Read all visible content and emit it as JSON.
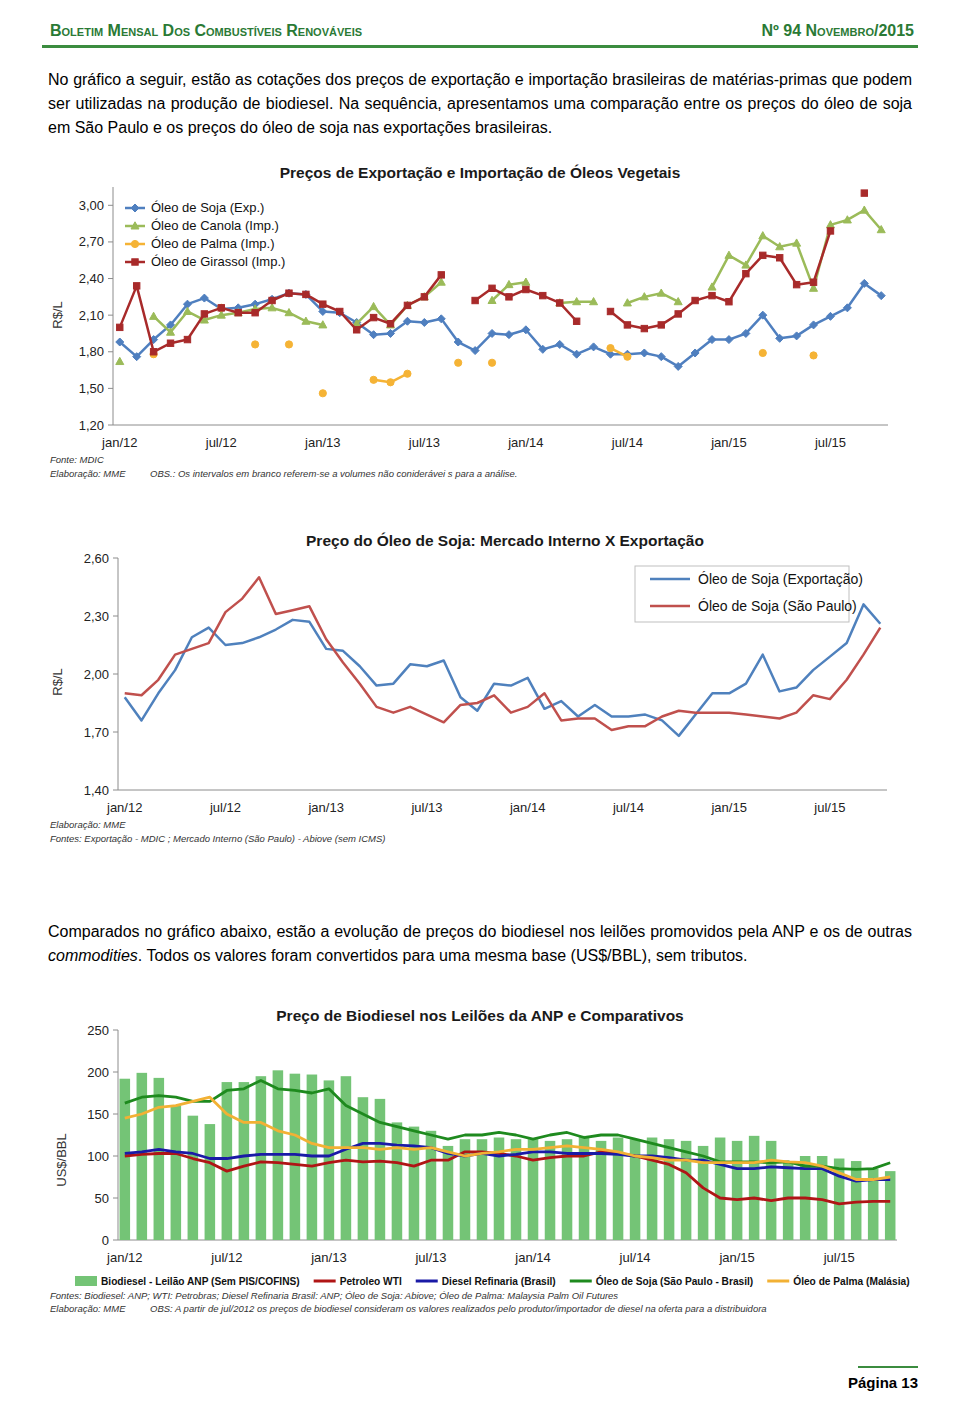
{
  "header": {
    "title": "Boletim Mensal Dos Combustíveis Renováveis",
    "issue": "Nº 94 Novembro/2015"
  },
  "paragraphs": [
    [
      {
        "text": "No gráfico a seguir, estão as cotações dos preços de exportação e importação brasileiras de matérias-primas que podem ser utilizadas na produção de biodiesel. Na sequência, apresentamos uma comparação entre os preços do óleo de soja em São Paulo e os preços do óleo de soja nas exportações brasileiras."
      }
    ],
    [
      {
        "text": "Comparados no gráfico abaixo, estão a evolução de preços do biodiesel nos leilões promovidos pela ANP e os de outras "
      },
      {
        "text": "commodities",
        "italic": true
      },
      {
        "text": ". Todos os valores foram convertidos para uma mesma base (US$/BBL), sem tributos."
      }
    ]
  ],
  "chart_data": [
    {
      "type": "line",
      "title": "Preços de Exportação e Importação de Óleos Vegetais",
      "y_label": "R$/L",
      "categories": [
        "jan/12",
        null,
        null,
        null,
        null,
        null,
        "jul/12",
        null,
        null,
        null,
        null,
        null,
        "jan/13",
        null,
        null,
        null,
        null,
        null,
        "jul/13",
        null,
        null,
        null,
        null,
        null,
        "jan/14",
        null,
        null,
        null,
        null,
        null,
        "jul/14",
        null,
        null,
        null,
        null,
        null,
        "jan/15",
        null,
        null,
        null,
        null,
        null,
        "jul/15",
        null,
        null,
        null
      ],
      "ylim": [
        1.2,
        3.15
      ],
      "yticks": [
        {
          "value": 1.2,
          "label": "1,20"
        },
        {
          "value": 1.5,
          "label": "1,50"
        },
        {
          "value": 1.8,
          "label": "1,80"
        },
        {
          "value": 2.1,
          "label": "2,10"
        },
        {
          "value": 2.4,
          "label": "2,40"
        },
        {
          "value": 2.7,
          "label": "2,70"
        },
        {
          "value": 3.0,
          "label": "3,00"
        }
      ],
      "grid": false,
      "legend": "upper left",
      "annotations": [
        "Fonte: MDIC",
        "Elaboração: MME",
        "OBS.: Os intervalos em branco referem-se a volumes não coniderávei s para a análise."
      ],
      "series": [
        {
          "name": "Óleo de Soja (Exp.)",
          "color": "#4f7fbf",
          "marker": "diamond",
          "line_style": "solid",
          "values": [
            1.88,
            1.76,
            1.9,
            2.02,
            2.19,
            2.24,
            2.15,
            2.16,
            2.19,
            2.23,
            2.28,
            2.27,
            2.13,
            2.12,
            2.04,
            1.94,
            1.95,
            2.05,
            2.04,
            2.07,
            1.88,
            1.81,
            1.95,
            1.94,
            1.98,
            1.82,
            1.86,
            1.78,
            1.84,
            1.78,
            1.78,
            1.79,
            1.76,
            1.68,
            1.79,
            1.9,
            1.9,
            1.95,
            2.1,
            1.91,
            1.93,
            2.02,
            2.09,
            2.16,
            2.36,
            2.26
          ]
        },
        {
          "name": "Óleo de Canola (Imp.)",
          "color": "#9bbb59",
          "marker": "triangle",
          "line_style": "solid",
          "values": [
            1.72,
            null,
            2.09,
            1.96,
            2.13,
            2.06,
            2.1,
            2.12,
            2.15,
            2.16,
            2.12,
            2.05,
            2.02,
            null,
            2.03,
            2.17,
            2.02,
            2.18,
            2.25,
            2.37,
            null,
            null,
            2.22,
            2.35,
            2.37,
            null,
            2.2,
            2.21,
            2.21,
            null,
            2.2,
            2.25,
            2.28,
            2.21,
            null,
            2.33,
            2.59,
            2.51,
            2.75,
            2.66,
            2.69,
            2.32,
            2.84,
            2.88,
            2.96,
            2.8
          ]
        },
        {
          "name": "Óleo de Palma (Imp.)",
          "color": "#f5b335",
          "marker": "circle",
          "line_style": "solid",
          "values": [
            null,
            null,
            1.78,
            null,
            null,
            null,
            2.16,
            null,
            1.86,
            null,
            1.86,
            null,
            1.46,
            null,
            null,
            1.57,
            1.55,
            1.62,
            null,
            null,
            1.71,
            null,
            1.71,
            null,
            null,
            null,
            null,
            null,
            null,
            1.83,
            1.76,
            null,
            null,
            null,
            null,
            null,
            null,
            null,
            1.79,
            null,
            null,
            1.77,
            null,
            null,
            null,
            null
          ]
        },
        {
          "name": "Óleo de Girassol (Imp.)",
          "color": "#a82a2a",
          "marker": "square",
          "line_style": "solid",
          "values": [
            2.0,
            2.34,
            1.8,
            1.87,
            1.9,
            2.11,
            2.16,
            2.12,
            2.12,
            2.22,
            2.28,
            2.27,
            2.19,
            2.13,
            1.98,
            2.08,
            2.03,
            2.18,
            2.25,
            2.43,
            null,
            2.22,
            2.32,
            2.25,
            2.31,
            2.26,
            2.2,
            2.05,
            null,
            2.13,
            2.02,
            1.99,
            2.02,
            2.11,
            2.22,
            2.26,
            2.21,
            2.44,
            2.59,
            2.57,
            2.35,
            2.37,
            2.79,
            null,
            3.1,
            null
          ]
        }
      ]
    },
    {
      "type": "line",
      "title": "Preço do Óleo de Soja: Mercado Interno X Exportação",
      "y_label": "R$/L",
      "categories": [
        "jan/12",
        null,
        null,
        null,
        null,
        null,
        "jul/12",
        null,
        null,
        null,
        null,
        null,
        "jan/13",
        null,
        null,
        null,
        null,
        null,
        "jul/13",
        null,
        null,
        null,
        null,
        null,
        "jan/14",
        null,
        null,
        null,
        null,
        null,
        "jul/14",
        null,
        null,
        null,
        null,
        null,
        "jan/15",
        null,
        null,
        null,
        null,
        null,
        "jul/15",
        null,
        null,
        null
      ],
      "ylim": [
        1.4,
        2.6
      ],
      "yticks": [
        {
          "value": 1.4,
          "label": "1,40"
        },
        {
          "value": 1.7,
          "label": "1,70"
        },
        {
          "value": 2.0,
          "label": "2,00"
        },
        {
          "value": 2.3,
          "label": "2,30"
        },
        {
          "value": 2.6,
          "label": "2,60"
        }
      ],
      "grid": false,
      "legend": "upper right",
      "annotations": [
        "Elaboração: MME",
        "Fontes: Exportação - MDIC ; Mercado Interno (São Paulo) - Abiove (sem ICMS)"
      ],
      "series": [
        {
          "name": "Óleo de Soja (Exportação)",
          "color": "#4f81bd",
          "line_style": "solid",
          "values": [
            1.88,
            1.76,
            1.9,
            2.02,
            2.19,
            2.24,
            2.15,
            2.16,
            2.19,
            2.23,
            2.28,
            2.27,
            2.13,
            2.12,
            2.04,
            1.94,
            1.95,
            2.05,
            2.04,
            2.07,
            1.88,
            1.81,
            1.95,
            1.94,
            1.98,
            1.82,
            1.86,
            1.78,
            1.84,
            1.78,
            1.78,
            1.79,
            1.76,
            1.68,
            1.79,
            1.9,
            1.9,
            1.95,
            2.1,
            1.91,
            1.93,
            2.02,
            2.09,
            2.16,
            2.36,
            2.26
          ]
        },
        {
          "name": "Óleo de Soja (São Paulo)",
          "color": "#c0504d",
          "line_style": "solid",
          "values": [
            1.9,
            1.89,
            1.97,
            2.1,
            2.13,
            2.16,
            2.32,
            2.39,
            2.5,
            2.31,
            2.33,
            2.35,
            2.18,
            2.06,
            1.95,
            1.83,
            1.8,
            1.83,
            1.79,
            1.75,
            1.84,
            1.85,
            1.89,
            1.8,
            1.83,
            1.9,
            1.76,
            1.77,
            1.77,
            1.71,
            1.73,
            1.73,
            1.78,
            1.81,
            1.8,
            1.8,
            1.8,
            1.79,
            1.78,
            1.77,
            1.8,
            1.89,
            1.87,
            1.97,
            2.1,
            2.24
          ]
        }
      ]
    },
    {
      "type": "bar",
      "title": "Preço de Biodiesel nos Leilões da ANP e Comparativos",
      "y_label": "US$/BBL",
      "categories": [
        "jan/12",
        null,
        null,
        null,
        null,
        null,
        "jul/12",
        null,
        null,
        null,
        null,
        null,
        "jan/13",
        null,
        null,
        null,
        null,
        null,
        "jul/13",
        null,
        null,
        null,
        null,
        null,
        "jan/14",
        null,
        null,
        null,
        null,
        null,
        "jul/14",
        null,
        null,
        null,
        null,
        null,
        "jan/15",
        null,
        null,
        null,
        null,
        null,
        "jul/15",
        null,
        null,
        null
      ],
      "ylim": [
        0,
        250
      ],
      "yticks": [
        0,
        50,
        100,
        150,
        200,
        250
      ],
      "grid": false,
      "legend": "bottom",
      "annotations": [
        "Fontes: Biodiesel: ANP; WTI: Petrobras; Diesel Refinaria Brasil: ANP; Óleo de Soja: Abiove; Óleo de Palma: Malaysia Palm Oil Futures",
        "Elaboração: MME",
        "OBS: A partir de jul/2012 os preços de biodiesel consideram os valores realizados pelo produtor/importador de diesel na oferta para a distribuidora"
      ],
      "series": [
        {
          "name": "Biodiesel - Leilão ANP (Sem PIS/COFINS)",
          "type": "bar",
          "color": "#74c476",
          "values": [
            192,
            199,
            193,
            160,
            148,
            138,
            188,
            188,
            195,
            202,
            198,
            197,
            190,
            195,
            170,
            168,
            140,
            135,
            130,
            112,
            120,
            120,
            122,
            120,
            120,
            118,
            120,
            124,
            118,
            122,
            120,
            122,
            120,
            118,
            112,
            122,
            118,
            124,
            118,
            93,
            100,
            100,
            97,
            94,
            85,
            82
          ]
        },
        {
          "name": "Petroleo WTI",
          "type": "line",
          "color": "#b01515",
          "line_style": "solid",
          "values": [
            100,
            102,
            103,
            103,
            97,
            92,
            82,
            88,
            93,
            92,
            90,
            88,
            92,
            95,
            93,
            94,
            92,
            88,
            95,
            95,
            105,
            105,
            103,
            100,
            95,
            98,
            100,
            100,
            105,
            103,
            100,
            95,
            90,
            80,
            62,
            50,
            48,
            50,
            47,
            50,
            50,
            48,
            43,
            45,
            46,
            46
          ]
        },
        {
          "name": "Diesel Refinaria (Brasil)",
          "type": "line",
          "color": "#1a1aa6",
          "line_style": "solid",
          "values": [
            103,
            105,
            108,
            105,
            103,
            97,
            97,
            100,
            102,
            102,
            102,
            100,
            100,
            108,
            115,
            115,
            113,
            112,
            110,
            103,
            100,
            103,
            100,
            102,
            105,
            105,
            103,
            103,
            103,
            102,
            100,
            100,
            98,
            95,
            95,
            90,
            85,
            85,
            87,
            86,
            85,
            85,
            76,
            70,
            72,
            72
          ]
        },
        {
          "name": "Óleo de Soja (São Paulo - Brasil)",
          "type": "line",
          "color": "#1e8a1e",
          "line_style": "solid",
          "values": [
            163,
            170,
            172,
            170,
            165,
            165,
            178,
            180,
            190,
            180,
            178,
            175,
            180,
            160,
            150,
            140,
            135,
            130,
            125,
            120,
            125,
            125,
            128,
            125,
            120,
            125,
            128,
            122,
            125,
            125,
            120,
            115,
            110,
            105,
            100,
            93,
            93,
            93,
            92,
            93,
            88,
            88,
            85,
            84,
            85,
            92
          ]
        },
        {
          "name": "Óleo de Palma (Malásia)",
          "type": "line",
          "color": "#f2b134",
          "line_style": "solid",
          "values": [
            145,
            150,
            158,
            160,
            165,
            170,
            150,
            140,
            140,
            130,
            125,
            115,
            110,
            110,
            110,
            108,
            110,
            108,
            110,
            105,
            100,
            103,
            105,
            108,
            108,
            110,
            112,
            110,
            108,
            105,
            100,
            98,
            95,
            95,
            92,
            92,
            92,
            92,
            95,
            93,
            92,
            88,
            80,
            72,
            72,
            75
          ]
        }
      ]
    }
  ],
  "footer": {
    "page": "Página 13"
  }
}
